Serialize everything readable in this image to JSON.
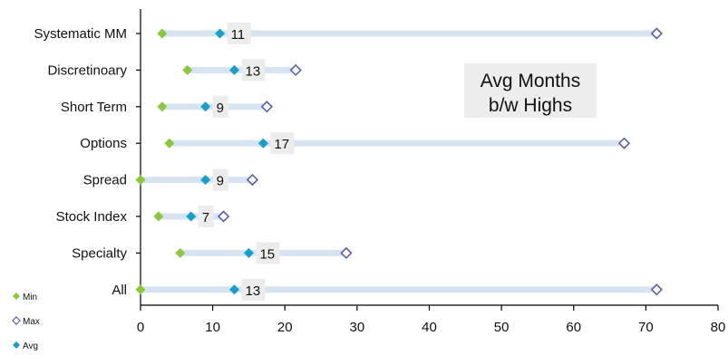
{
  "chart_data": {
    "type": "dot-range",
    "title": [
      "Avg Months",
      "b/w Highs"
    ],
    "categories": [
      "Systematic MM",
      "Discretinoary",
      "Short Term",
      "Options",
      "Spread",
      "Stock Index",
      "Specialty",
      "All"
    ],
    "series": [
      {
        "name": "Min",
        "values": [
          3,
          6.5,
          3,
          4,
          0,
          2.5,
          5.5,
          0
        ]
      },
      {
        "name": "Avg",
        "values": [
          11,
          13,
          9,
          17,
          9,
          7,
          15,
          13
        ]
      },
      {
        "name": "Max",
        "values": [
          71.5,
          21.5,
          17.5,
          67,
          15.5,
          11.5,
          28.5,
          71.5
        ]
      }
    ],
    "data_labels": [
      "11",
      "13",
      "9",
      "17",
      "9",
      "7",
      "15",
      "13"
    ],
    "xlim": [
      0,
      80
    ],
    "xticks": [
      "0",
      "10",
      "20",
      "30",
      "40",
      "50",
      "60",
      "70",
      "80"
    ],
    "legend": {
      "position": "bottom-left",
      "items": [
        "Min",
        "Max",
        "Avg"
      ]
    },
    "colors": {
      "min": "#8dc63f",
      "avg": "#1a9ec9",
      "max": "#5b5fa8",
      "range_bar": "#d6e4f2",
      "label_bg": "#ececec",
      "title_bg": "#ededed",
      "axis": "#000000"
    },
    "grid": false
  }
}
